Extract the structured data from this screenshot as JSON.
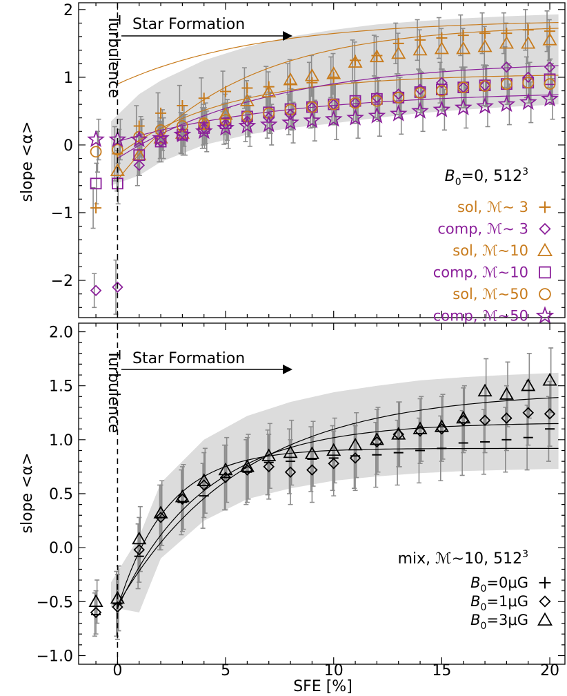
{
  "chart_data": [
    {
      "type": "scatter",
      "panel": "top",
      "xlabel": "SFE [%]",
      "ylabel": "slope <α>",
      "xlim": [
        -1.8,
        20.7
      ],
      "ylim": [
        -2.55,
        2.1
      ],
      "yticks": [
        "−2",
        "−1",
        "0",
        "1",
        "2"
      ],
      "ytick_values": [
        -2,
        -1,
        0,
        1,
        2
      ],
      "xticks": [
        "0",
        "5",
        "10",
        "15",
        "20"
      ],
      "xtick_values": [
        0,
        5,
        10,
        15,
        20
      ],
      "annotations": {
        "turbulence": "Turbulence",
        "star_formation": "Star Formation"
      },
      "legend_title": {
        "main": "B",
        "sub": "0",
        "rest": "=0, 512",
        "sup": "3"
      },
      "legend_position": "right",
      "band": [
        {
          "x": -0.3,
          "lo": -0.6,
          "hi": 0.35
        },
        {
          "x": 1,
          "lo": -0.45,
          "hi": 0.75
        },
        {
          "x": 2,
          "lo": -0.25,
          "hi": 0.95
        },
        {
          "x": 4,
          "lo": 0.0,
          "hi": 1.25
        },
        {
          "x": 6,
          "lo": 0.15,
          "hi": 1.45
        },
        {
          "x": 8,
          "lo": 0.25,
          "hi": 1.6
        },
        {
          "x": 10,
          "lo": 0.32,
          "hi": 1.7
        },
        {
          "x": 12,
          "lo": 0.4,
          "hi": 1.78
        },
        {
          "x": 14,
          "lo": 0.47,
          "hi": 1.83
        },
        {
          "x": 16,
          "lo": 0.52,
          "hi": 1.87
        },
        {
          "x": 18,
          "lo": 0.56,
          "hi": 1.9
        },
        {
          "x": 20.4,
          "lo": 0.6,
          "hi": 1.93
        }
      ],
      "fits": [
        {
          "color": "#c87b1c",
          "a": 1.85,
          "b": 0.95,
          "tau": 6.5
        },
        {
          "color": "#c87b1c",
          "a": 1.78,
          "b": 2.3,
          "tau": 5.5
        },
        {
          "color": "#c87b1c",
          "a": 1.05,
          "b": 1.2,
          "tau": 5.0
        },
        {
          "color": "#8b1f9a",
          "a": 1.25,
          "b": 1.45,
          "tau": 7.0
        },
        {
          "color": "#8b1f9a",
          "a": 0.8,
          "b": 0.75,
          "tau": 8.0
        }
      ],
      "series": [
        {
          "name": "sol, ℳ∼ 3",
          "marker": "plus",
          "color": "#c87b1c",
          "x": [
            -1,
            0,
            1,
            2,
            3,
            4,
            5,
            6,
            7,
            8,
            9,
            10,
            11,
            12,
            13,
            14,
            15,
            16,
            17,
            18,
            19,
            20
          ],
          "y": [
            -0.93,
            -0.13,
            0.28,
            0.47,
            0.58,
            0.69,
            0.79,
            0.84,
            0.86,
            0.9,
            0.92,
            1.0,
            1.25,
            1.32,
            1.5,
            1.55,
            1.58,
            1.62,
            1.65,
            1.65,
            1.7,
            1.68
          ],
          "err": [
            0.3,
            0.4,
            0.3,
            0.3,
            0.3,
            0.3,
            0.3,
            0.3,
            0.3,
            0.3,
            0.3,
            0.3,
            0.3,
            0.3,
            0.3,
            0.3,
            0.3,
            0.3,
            0.3,
            0.3,
            0.3,
            0.3
          ]
        },
        {
          "name": "comp, ℳ∼ 3",
          "marker": "diamond",
          "color": "#8b1f9a",
          "x": [
            -1,
            0,
            1,
            2,
            3,
            4,
            5,
            6,
            7,
            8,
            9,
            10,
            11,
            12,
            13,
            14,
            15,
            16,
            17,
            18,
            19,
            20
          ],
          "y": [
            -2.15,
            -2.1,
            -0.3,
            0.05,
            0.18,
            0.25,
            0.31,
            0.35,
            0.4,
            0.45,
            0.55,
            0.6,
            0.62,
            0.7,
            0.75,
            0.82,
            0.92,
            0.85,
            0.88,
            1.15,
            1.0,
            1.15
          ],
          "err": [
            0.25,
            0.4,
            0.3,
            0.3,
            0.3,
            0.3,
            0.3,
            0.3,
            0.3,
            0.3,
            0.3,
            0.3,
            0.3,
            0.3,
            0.3,
            0.3,
            0.3,
            0.3,
            0.3,
            0.3,
            0.3,
            0.3
          ]
        },
        {
          "name": "sol, ℳ∼10",
          "marker": "triangle",
          "color": "#c87b1c",
          "x": [
            0,
            1,
            2,
            3,
            4,
            5,
            6,
            7,
            8,
            9,
            10,
            11,
            12,
            13,
            14,
            15,
            16,
            17,
            18,
            19,
            20
          ],
          "y": [
            -0.38,
            -0.15,
            0.1,
            0.17,
            0.3,
            0.45,
            0.65,
            0.78,
            0.96,
            1.02,
            1.05,
            1.22,
            1.3,
            1.35,
            1.4,
            1.42,
            1.42,
            1.45,
            1.5,
            1.5,
            1.55
          ],
          "err": [
            0.3,
            0.3,
            0.3,
            0.3,
            0.3,
            0.3,
            0.3,
            0.3,
            0.3,
            0.3,
            0.3,
            0.3,
            0.3,
            0.3,
            0.3,
            0.3,
            0.3,
            0.3,
            0.3,
            0.3,
            0.3
          ]
        },
        {
          "name": "comp, ℳ∼10",
          "marker": "square",
          "color": "#8b1f9a",
          "x": [
            -1,
            0,
            1,
            2,
            3,
            4,
            5,
            6,
            7,
            8,
            9,
            10,
            11,
            12,
            13,
            14,
            15,
            16,
            17,
            18,
            19,
            20
          ],
          "y": [
            -0.57,
            -0.57,
            -0.15,
            0.05,
            0.15,
            0.25,
            0.32,
            0.42,
            0.48,
            0.53,
            0.56,
            0.6,
            0.65,
            0.68,
            0.7,
            0.78,
            0.82,
            0.85,
            0.88,
            0.9,
            0.92,
            0.97
          ],
          "err": [
            0.3,
            0.3,
            0.3,
            0.3,
            0.3,
            0.3,
            0.3,
            0.3,
            0.3,
            0.3,
            0.3,
            0.3,
            0.3,
            0.3,
            0.3,
            0.3,
            0.3,
            0.3,
            0.3,
            0.3,
            0.3,
            0.3
          ]
        },
        {
          "name": "sol, ℳ∼50",
          "marker": "circle",
          "color": "#c87b1c",
          "x": [
            -1,
            0,
            1,
            2,
            3,
            4,
            5,
            6,
            7,
            8,
            9,
            10,
            11,
            12,
            13,
            14,
            15,
            16,
            17,
            18,
            19,
            20
          ],
          "y": [
            -0.1,
            -0.07,
            0.12,
            0.22,
            0.28,
            0.32,
            0.37,
            0.42,
            0.47,
            0.52,
            0.56,
            0.6,
            0.62,
            0.65,
            0.7,
            0.77,
            0.8,
            0.85,
            0.87,
            0.9,
            0.92,
            0.9
          ],
          "err": [
            0.3,
            0.3,
            0.3,
            0.3,
            0.3,
            0.3,
            0.3,
            0.3,
            0.3,
            0.3,
            0.3,
            0.3,
            0.3,
            0.3,
            0.3,
            0.3,
            0.3,
            0.3,
            0.3,
            0.3,
            0.3,
            0.3
          ]
        },
        {
          "name": "comp, ℳ∼50",
          "marker": "star",
          "color": "#8b1f9a",
          "x": [
            -1,
            0,
            1,
            2,
            3,
            4,
            5,
            6,
            7,
            8,
            9,
            10,
            11,
            12,
            13,
            14,
            15,
            16,
            17,
            18,
            19,
            20
          ],
          "y": [
            0.08,
            0.08,
            0.08,
            0.1,
            0.15,
            0.2,
            0.25,
            0.28,
            0.3,
            0.33,
            0.36,
            0.38,
            0.4,
            0.43,
            0.46,
            0.5,
            0.52,
            0.55,
            0.57,
            0.6,
            0.63,
            0.68
          ],
          "err": [
            0.3,
            0.3,
            0.3,
            0.3,
            0.3,
            0.3,
            0.3,
            0.3,
            0.3,
            0.3,
            0.3,
            0.3,
            0.3,
            0.3,
            0.3,
            0.3,
            0.3,
            0.3,
            0.3,
            0.3,
            0.3,
            0.3
          ]
        }
      ]
    },
    {
      "type": "scatter",
      "panel": "bottom",
      "xlabel": "SFE [%]",
      "ylabel": "slope <α>",
      "xlim": [
        -1.8,
        20.7
      ],
      "ylim": [
        -1.08,
        2.08
      ],
      "yticks": [
        "−1.0",
        "−0.5",
        "0.0",
        "0.5",
        "1.0",
        "1.5",
        "2.0"
      ],
      "ytick_values": [
        -1.0,
        -0.5,
        0.0,
        0.5,
        1.0,
        1.5,
        2.0
      ],
      "xticks": [
        "0",
        "5",
        "10",
        "15",
        "20"
      ],
      "xtick_values": [
        0,
        5,
        10,
        15,
        20
      ],
      "annotations": {
        "turbulence": "Turbulence",
        "star_formation": "Star Formation"
      },
      "legend_title": {
        "main": "mix, ℳ∼10, 512",
        "sup": "3"
      },
      "legend_position": "bottom-right",
      "band": [
        {
          "x": -0.3,
          "lo": -0.55,
          "hi": -0.32
        },
        {
          "x": 1,
          "lo": -0.6,
          "hi": 0.1
        },
        {
          "x": 2,
          "lo": -0.1,
          "hi": 0.6
        },
        {
          "x": 4,
          "lo": 0.25,
          "hi": 1.0
        },
        {
          "x": 6,
          "lo": 0.45,
          "hi": 1.22
        },
        {
          "x": 8,
          "lo": 0.55,
          "hi": 1.35
        },
        {
          "x": 10,
          "lo": 0.62,
          "hi": 1.44
        },
        {
          "x": 12,
          "lo": 0.66,
          "hi": 1.5
        },
        {
          "x": 14,
          "lo": 0.69,
          "hi": 1.55
        },
        {
          "x": 16,
          "lo": 0.71,
          "hi": 1.58
        },
        {
          "x": 18,
          "lo": 0.72,
          "hi": 1.6
        },
        {
          "x": 20.4,
          "lo": 0.73,
          "hi": 1.62
        }
      ],
      "fits": [
        {
          "color": "#000000",
          "a": 0.92,
          "b": 1.48,
          "tau": 2.3
        },
        {
          "color": "#000000",
          "a": 1.16,
          "b": 1.72,
          "tau": 4.0
        },
        {
          "color": "#000000",
          "a": 1.45,
          "b": 1.98,
          "tau": 5.8
        }
      ],
      "series": [
        {
          "name": "B0=0μG",
          "label_main": "B",
          "label_sub": "0",
          "label_rest": "=0μG",
          "marker": "dash",
          "color": "#000000",
          "x": [
            -1,
            0,
            1,
            2,
            3,
            4,
            5,
            6,
            7,
            8,
            9,
            10,
            11,
            12,
            13,
            14,
            15,
            16,
            17,
            18,
            19,
            20
          ],
          "y": [
            -0.62,
            -0.52,
            -0.08,
            0.28,
            0.42,
            0.48,
            0.65,
            0.7,
            0.79,
            0.8,
            0.82,
            0.83,
            0.85,
            0.86,
            0.88,
            0.9,
            0.92,
            0.97,
            0.98,
            1.0,
            1.02,
            1.1
          ],
          "err": [
            0.2,
            0.3,
            0.3,
            0.3,
            0.3,
            0.3,
            0.3,
            0.3,
            0.3,
            0.3,
            0.3,
            0.3,
            0.3,
            0.3,
            0.3,
            0.3,
            0.3,
            0.3,
            0.3,
            0.3,
            0.3,
            0.3
          ]
        },
        {
          "name": "B0=1μG",
          "label_main": "B",
          "label_sub": "0",
          "label_rest": "=1μG",
          "marker": "diamond",
          "color": "#000000",
          "x": [
            -1,
            0,
            1,
            2,
            3,
            4,
            5,
            6,
            7,
            8,
            9,
            10,
            11,
            12,
            13,
            14,
            15,
            16,
            17,
            18,
            19,
            20
          ],
          "y": [
            -0.6,
            -0.55,
            -0.02,
            0.28,
            0.45,
            0.58,
            0.65,
            0.72,
            0.75,
            0.7,
            0.72,
            0.78,
            0.83,
            0.98,
            1.05,
            1.08,
            1.1,
            1.18,
            1.18,
            1.2,
            1.25,
            1.24
          ],
          "err": [
            0.2,
            0.3,
            0.3,
            0.3,
            0.3,
            0.3,
            0.3,
            0.3,
            0.3,
            0.3,
            0.3,
            0.3,
            0.3,
            0.3,
            0.3,
            0.3,
            0.3,
            0.3,
            0.3,
            0.3,
            0.3,
            0.3
          ]
        },
        {
          "name": "B0=3μG",
          "label_main": "B",
          "label_sub": "0",
          "label_rest": "=3μG",
          "marker": "triangle",
          "color": "#000000",
          "x": [
            -1,
            0,
            1,
            2,
            3,
            4,
            5,
            6,
            7,
            8,
            9,
            10,
            11,
            12,
            13,
            14,
            15,
            16,
            17,
            18,
            19,
            20
          ],
          "y": [
            -0.5,
            -0.47,
            0.08,
            0.32,
            0.47,
            0.62,
            0.72,
            0.75,
            0.85,
            0.88,
            0.87,
            0.9,
            0.95,
            1.0,
            1.05,
            1.1,
            1.12,
            1.2,
            1.45,
            1.42,
            1.5,
            1.55
          ],
          "err": [
            0.2,
            0.3,
            0.3,
            0.3,
            0.3,
            0.3,
            0.3,
            0.3,
            0.3,
            0.3,
            0.3,
            0.3,
            0.3,
            0.3,
            0.3,
            0.3,
            0.3,
            0.3,
            0.3,
            0.3,
            0.3,
            0.3
          ]
        }
      ]
    }
  ]
}
